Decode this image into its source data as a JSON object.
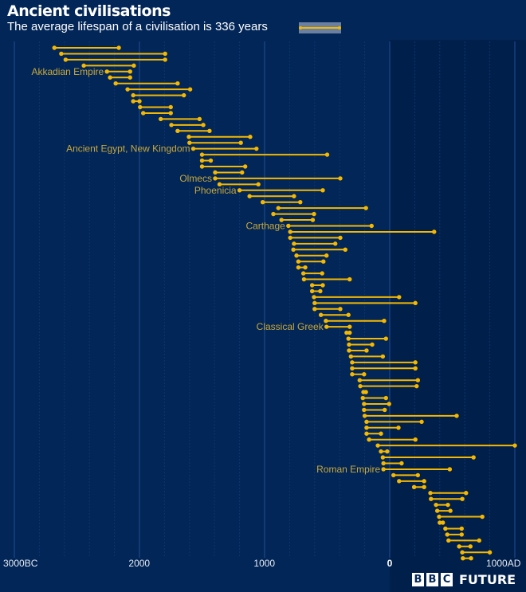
{
  "header": {
    "title": "Ancient civilisations",
    "subtitle": "The average lifespan of a civilisation is 336 years"
  },
  "branding": {
    "letters": [
      "B",
      "B",
      "C"
    ],
    "product": "FUTURE"
  },
  "colors": {
    "background": "#022657",
    "background_right": "#011f4b",
    "bar": "#f5b800",
    "label": "#c9a83a",
    "gridline_major": "#1e4f9a",
    "gridline_minor": "#0e356c",
    "legend_bg": "#6b7fa0"
  },
  "chart_data": {
    "type": "range-dumbbell",
    "title": "Ancient civilisations",
    "subtitle": "The average lifespan of a civilisation is 336 years",
    "xlabel": "",
    "ylabel": "",
    "xlim": [
      -3000,
      1000
    ],
    "x_ticks": [
      {
        "value": -3000,
        "label": "3000BC"
      },
      {
        "value": -2000,
        "label": "2000"
      },
      {
        "value": -1000,
        "label": "1000"
      },
      {
        "value": 0,
        "label": "0",
        "bold": true
      },
      {
        "value": 1000,
        "label": "1000AD"
      }
    ],
    "grid": true,
    "legend": {
      "position": "top-right of subtitle",
      "entries": [
        "average lifespan 336 years"
      ]
    },
    "px": {
      "x0": 489,
      "per_1000": 157,
      "row_start_y": 60,
      "row_step": 7.45
    },
    "series": [
      {
        "start": -2680,
        "end": -2165
      },
      {
        "start": -2625,
        "end": -1795
      },
      {
        "start": -2590,
        "end": -1795
      },
      {
        "start": -2445,
        "end": -2045
      },
      {
        "start": -2260,
        "end": -2075,
        "label": "Akkadian Empire"
      },
      {
        "start": -2235,
        "end": -2075
      },
      {
        "start": -2190,
        "end": -1695
      },
      {
        "start": -2095,
        "end": -1595
      },
      {
        "start": -2050,
        "end": -1645
      },
      {
        "start": -2050,
        "end": -2000
      },
      {
        "start": -1995,
        "end": -1750
      },
      {
        "start": -1970,
        "end": -1750
      },
      {
        "start": -1830,
        "end": -1520
      },
      {
        "start": -1745,
        "end": -1490
      },
      {
        "start": -1695,
        "end": -1440
      },
      {
        "start": -1605,
        "end": -1115
      },
      {
        "start": -1600,
        "end": -1190
      },
      {
        "start": -1570,
        "end": -1065,
        "label": "Ancient Egypt, New Kingdom"
      },
      {
        "start": -1500,
        "end": -500
      },
      {
        "start": -1500,
        "end": -1430
      },
      {
        "start": -1500,
        "end": -1155
      },
      {
        "start": -1395,
        "end": -1180
      },
      {
        "start": -1395,
        "end": -395,
        "label": "Olmecs"
      },
      {
        "start": -1360,
        "end": -1050
      },
      {
        "start": -1200,
        "end": -535,
        "label": "Phoenicia"
      },
      {
        "start": -1120,
        "end": -765
      },
      {
        "start": -1015,
        "end": -715
      },
      {
        "start": -890,
        "end": -190
      },
      {
        "start": -930,
        "end": -605
      },
      {
        "start": -865,
        "end": -615
      },
      {
        "start": -810,
        "end": -145,
        "label": "Carthage"
      },
      {
        "start": -795,
        "end": 355
      },
      {
        "start": -795,
        "end": -395
      },
      {
        "start": -765,
        "end": -435
      },
      {
        "start": -770,
        "end": -355
      },
      {
        "start": -745,
        "end": -505
      },
      {
        "start": -730,
        "end": -530
      },
      {
        "start": -730,
        "end": -675
      },
      {
        "start": -690,
        "end": -540
      },
      {
        "start": -685,
        "end": -320
      },
      {
        "start": -620,
        "end": -535
      },
      {
        "start": -620,
        "end": -555
      },
      {
        "start": -605,
        "end": 75
      },
      {
        "start": -600,
        "end": 205
      },
      {
        "start": -600,
        "end": -395
      },
      {
        "start": -550,
        "end": -330
      },
      {
        "start": -510,
        "end": -45
      },
      {
        "start": -505,
        "end": -320,
        "label": "Classical Greek"
      },
      {
        "start": -345,
        "end": -320
      },
      {
        "start": -330,
        "end": -30
      },
      {
        "start": -325,
        "end": -140
      },
      {
        "start": -325,
        "end": -185
      },
      {
        "start": -310,
        "end": -55
      },
      {
        "start": -300,
        "end": 205
      },
      {
        "start": -300,
        "end": 205
      },
      {
        "start": -300,
        "end": -205
      },
      {
        "start": -240,
        "end": 225
      },
      {
        "start": -235,
        "end": 215
      },
      {
        "start": -210,
        "end": -190
      },
      {
        "start": -215,
        "end": -30
      },
      {
        "start": -205,
        "end": -5
      },
      {
        "start": -205,
        "end": -40
      },
      {
        "start": -200,
        "end": 535
      },
      {
        "start": -185,
        "end": 255
      },
      {
        "start": -185,
        "end": 70
      },
      {
        "start": -185,
        "end": -70
      },
      {
        "start": -165,
        "end": 205
      },
      {
        "start": -95,
        "end": 1000
      },
      {
        "start": -70,
        "end": -20
      },
      {
        "start": -55,
        "end": 670
      },
      {
        "start": -50,
        "end": 95
      },
      {
        "start": -50,
        "end": 480,
        "label": "Roman Empire"
      },
      {
        "start": 30,
        "end": 225
      },
      {
        "start": 75,
        "end": 275
      },
      {
        "start": 195,
        "end": 275
      },
      {
        "start": 325,
        "end": 610
      },
      {
        "start": 330,
        "end": 580
      },
      {
        "start": 370,
        "end": 465
      },
      {
        "start": 380,
        "end": 485
      },
      {
        "start": 395,
        "end": 740
      },
      {
        "start": 400,
        "end": 425
      },
      {
        "start": 445,
        "end": 575
      },
      {
        "start": 460,
        "end": 575
      },
      {
        "start": 470,
        "end": 715
      },
      {
        "start": 555,
        "end": 645
      },
      {
        "start": 580,
        "end": 800
      },
      {
        "start": 585,
        "end": 650
      }
    ]
  }
}
